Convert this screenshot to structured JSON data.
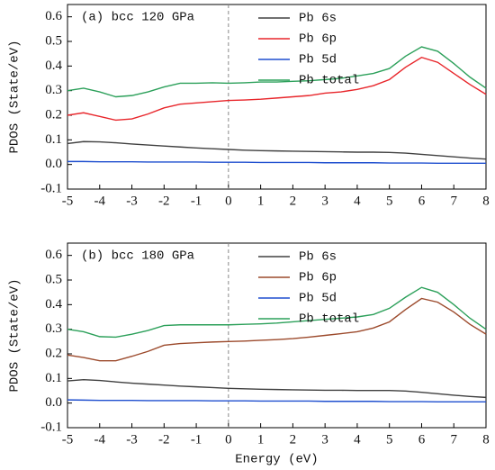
{
  "chart_data": [
    {
      "type": "line",
      "title": "(a) bcc 120 GPa",
      "ylabel": "PDOS (State/eV)",
      "x": [
        -5,
        -4.5,
        -4,
        -3.5,
        -3,
        -2.5,
        -2,
        -1.5,
        -1,
        -0.5,
        0,
        0.5,
        1,
        1.5,
        2,
        2.5,
        3,
        3.5,
        4,
        4.5,
        5,
        5.5,
        6,
        6.5,
        7,
        7.5,
        8
      ],
      "series": [
        {
          "name": "Pb 6s",
          "color": "#404040",
          "values": [
            0.085,
            0.093,
            0.092,
            0.088,
            0.083,
            0.079,
            0.075,
            0.071,
            0.067,
            0.064,
            0.061,
            0.058,
            0.056,
            0.055,
            0.054,
            0.053,
            0.052,
            0.051,
            0.05,
            0.05,
            0.049,
            0.046,
            0.041,
            0.036,
            0.031,
            0.026,
            0.022
          ]
        },
        {
          "name": "Pb 6p",
          "color": "#e8262b",
          "values": [
            0.2,
            0.21,
            0.195,
            0.18,
            0.185,
            0.205,
            0.23,
            0.245,
            0.25,
            0.255,
            0.26,
            0.262,
            0.265,
            0.27,
            0.275,
            0.28,
            0.29,
            0.295,
            0.305,
            0.32,
            0.345,
            0.395,
            0.435,
            0.415,
            0.37,
            0.325,
            0.285
          ]
        },
        {
          "name": "Pb 5d",
          "color": "#1f4fcf",
          "values": [
            0.012,
            0.012,
            0.011,
            0.011,
            0.011,
            0.01,
            0.01,
            0.01,
            0.01,
            0.009,
            0.009,
            0.009,
            0.008,
            0.008,
            0.008,
            0.008,
            0.007,
            0.007,
            0.007,
            0.007,
            0.006,
            0.006,
            0.006,
            0.005,
            0.005,
            0.005,
            0.005
          ]
        },
        {
          "name": "Pb total",
          "color": "#2ca05a",
          "values": [
            0.3,
            0.31,
            0.295,
            0.275,
            0.28,
            0.295,
            0.315,
            0.33,
            0.33,
            0.332,
            0.33,
            0.332,
            0.335,
            0.335,
            0.338,
            0.34,
            0.345,
            0.35,
            0.36,
            0.37,
            0.39,
            0.44,
            0.478,
            0.46,
            0.41,
            0.355,
            0.31
          ]
        }
      ],
      "xlim": [
        -5,
        8
      ],
      "ylim": [
        -0.1,
        0.65
      ],
      "xticks": [
        -5,
        -4,
        -3,
        -2,
        -1,
        0,
        1,
        2,
        3,
        4,
        5,
        6,
        7,
        8
      ],
      "yticks": [
        -0.1,
        {
          "value": 0,
          "label": "0.0"
        },
        0.1,
        0.2,
        0.3,
        0.4,
        0.5,
        0.6
      ],
      "vline": 0
    },
    {
      "type": "line",
      "title": "(b) bcc 180 GPa",
      "ylabel": "PDOS (State/eV)",
      "xlabel": "Energy (eV)",
      "x": [
        -5,
        -4.5,
        -4,
        -3.5,
        -3,
        -2.5,
        -2,
        -1.5,
        -1,
        -0.5,
        0,
        0.5,
        1,
        1.5,
        2,
        2.5,
        3,
        3.5,
        4,
        4.5,
        5,
        5.5,
        6,
        6.5,
        7,
        7.5,
        8
      ],
      "series": [
        {
          "name": "Pb 6s",
          "color": "#404040",
          "values": [
            0.09,
            0.095,
            0.092,
            0.086,
            0.081,
            0.077,
            0.073,
            0.069,
            0.066,
            0.063,
            0.06,
            0.058,
            0.056,
            0.055,
            0.054,
            0.053,
            0.052,
            0.052,
            0.051,
            0.051,
            0.051,
            0.049,
            0.044,
            0.038,
            0.032,
            0.027,
            0.023
          ]
        },
        {
          "name": "Pb 6p",
          "color": "#9c4a2c",
          "values": [
            0.195,
            0.185,
            0.172,
            0.172,
            0.19,
            0.21,
            0.235,
            0.242,
            0.245,
            0.248,
            0.25,
            0.252,
            0.255,
            0.258,
            0.262,
            0.268,
            0.275,
            0.282,
            0.29,
            0.305,
            0.33,
            0.38,
            0.425,
            0.41,
            0.37,
            0.32,
            0.28
          ]
        },
        {
          "name": "Pb 5d",
          "color": "#1f4fcf",
          "values": [
            0.013,
            0.012,
            0.011,
            0.011,
            0.011,
            0.01,
            0.01,
            0.01,
            0.01,
            0.009,
            0.009,
            0.009,
            0.008,
            0.008,
            0.008,
            0.008,
            0.007,
            0.007,
            0.007,
            0.007,
            0.006,
            0.006,
            0.006,
            0.005,
            0.005,
            0.005,
            0.005
          ]
        },
        {
          "name": "Pb total",
          "color": "#2ca05a",
          "values": [
            0.3,
            0.29,
            0.27,
            0.268,
            0.28,
            0.295,
            0.315,
            0.318,
            0.318,
            0.318,
            0.318,
            0.32,
            0.322,
            0.325,
            0.33,
            0.335,
            0.34,
            0.345,
            0.35,
            0.36,
            0.385,
            0.43,
            0.47,
            0.45,
            0.4,
            0.345,
            0.3
          ]
        }
      ],
      "xlim": [
        -5,
        8
      ],
      "ylim": [
        -0.1,
        0.65
      ],
      "xticks": [
        -5,
        -4,
        -3,
        -2,
        -1,
        0,
        1,
        2,
        3,
        4,
        5,
        6,
        7,
        8
      ],
      "yticks": [
        -0.1,
        {
          "value": 0,
          "label": "0.0"
        },
        0.1,
        0.2,
        0.3,
        0.4,
        0.5,
        0.6
      ],
      "vline": 0
    }
  ]
}
